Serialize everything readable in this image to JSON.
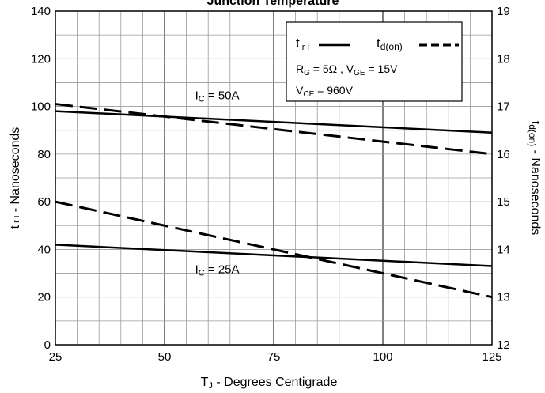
{
  "chart_data": {
    "type": "line",
    "title": "Junction Temperature",
    "xlabel": "T",
    "xlabel_sub": "J",
    "xlabel_rest": " - Degrees Centigrade",
    "ylabel": "t",
    "ylabel_sub": "r i",
    "ylabel_rest": " - Nanoseconds",
    "y2label": "t",
    "y2label_sub": "d(on)",
    "y2label_rest": " - Nanoseconds",
    "xlim": [
      25,
      125
    ],
    "ylim": [
      0,
      140
    ],
    "y2lim": [
      12,
      19
    ],
    "xticks": [
      25,
      50,
      75,
      100,
      125
    ],
    "yticks": [
      0,
      20,
      40,
      60,
      80,
      100,
      120,
      140
    ],
    "y2ticks": [
      12,
      13,
      14,
      15,
      16,
      17,
      18,
      19
    ],
    "grid": true,
    "legend_position": "top-right",
    "legend": {
      "tri_label": "t",
      "tri_sub": "r i",
      "tdon_label": "t",
      "tdon_sub": "d(on)",
      "cond1_a": "R",
      "cond1_a_sub": "G",
      "cond1_b": " = 5Ω ,  V",
      "cond1_b_sub": "GE",
      "cond1_c": " = 15V",
      "cond2_a": "V",
      "cond2_a_sub": "CE",
      "cond2_b": " = 960V"
    },
    "annotations": [
      {
        "text": "I",
        "sub": "C",
        "rest": " = 50A"
      },
      {
        "text": "I",
        "sub": "C",
        "rest": " = 25A"
      }
    ],
    "series": [
      {
        "name": "t r i",
        "condition": "I C = 50A",
        "axis": "left",
        "style": "solid",
        "x": [
          25,
          125
        ],
        "y": [
          98,
          89
        ]
      },
      {
        "name": "t d(on)",
        "condition": "I C = 50A",
        "axis": "right",
        "style": "dashed",
        "x": [
          25,
          125
        ],
        "y": [
          17.05,
          16.0
        ]
      },
      {
        "name": "t r i",
        "condition": "I C = 25A",
        "axis": "left",
        "style": "solid",
        "x": [
          25,
          125
        ],
        "y": [
          42,
          33
        ]
      },
      {
        "name": "t d(on)",
        "condition": "I C = 25A",
        "axis": "right",
        "style": "dashed",
        "x": [
          25,
          125
        ],
        "y": [
          15.0,
          13.0
        ]
      }
    ]
  }
}
